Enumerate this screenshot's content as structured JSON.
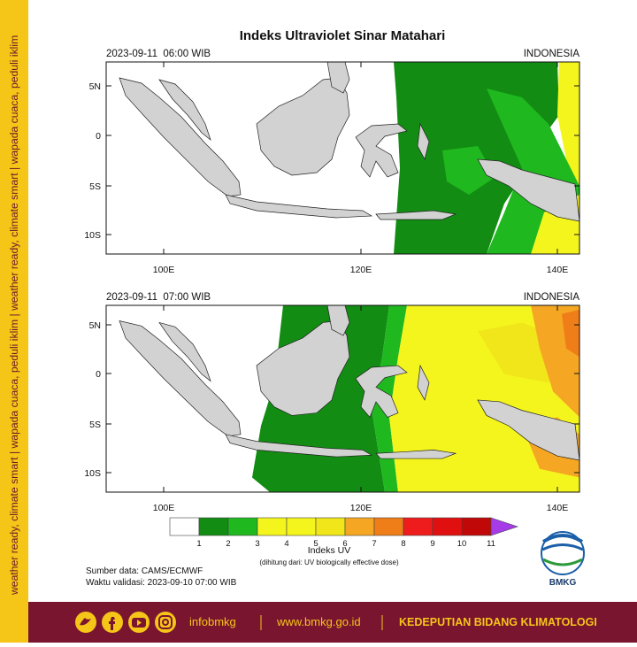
{
  "title": "Indeks Ultraviolet Sinar Matahari",
  "panels": [
    {
      "time": "2023-09-11  06:00 WIB",
      "region": "INDONESIA"
    },
    {
      "time": "2023-09-11  07:00 WIB",
      "region": "INDONESIA"
    }
  ],
  "lat_labels": [
    "5N",
    "0",
    "5S",
    "10S"
  ],
  "lon_labels": [
    "100E",
    "120E",
    "140E"
  ],
  "legend": {
    "ticks": [
      1,
      2,
      3,
      4,
      5,
      6,
      7,
      8,
      9,
      10,
      11
    ],
    "colors": [
      "#ffffff",
      "#128c12",
      "#1fb81f",
      "#f5f51e",
      "#f5f51e",
      "#f0e61a",
      "#f5a623",
      "#ef7d18",
      "#ee1c1c",
      "#e01010",
      "#c00808"
    ],
    "over_color": "#a63ce8",
    "title": "Indeks UV",
    "note": "(dihitung dari: UV biologically effective dose)"
  },
  "source": "Sumber data: CAMS/ECMWF",
  "validity": "Waktu validasi: 2023-09-10 07:00 WIB",
  "logo": "BMKG",
  "side_text": "weather ready, climate smart | wapada cuaca, peduli iklim | weather ready, climate smart | wapada cuaca, peduli iklim",
  "footer": {
    "handle": "infobmkg",
    "website": "www.bmkg.go.id",
    "department": "KEDEPUTIAN BIDANG KLIMATOLOGI"
  }
}
